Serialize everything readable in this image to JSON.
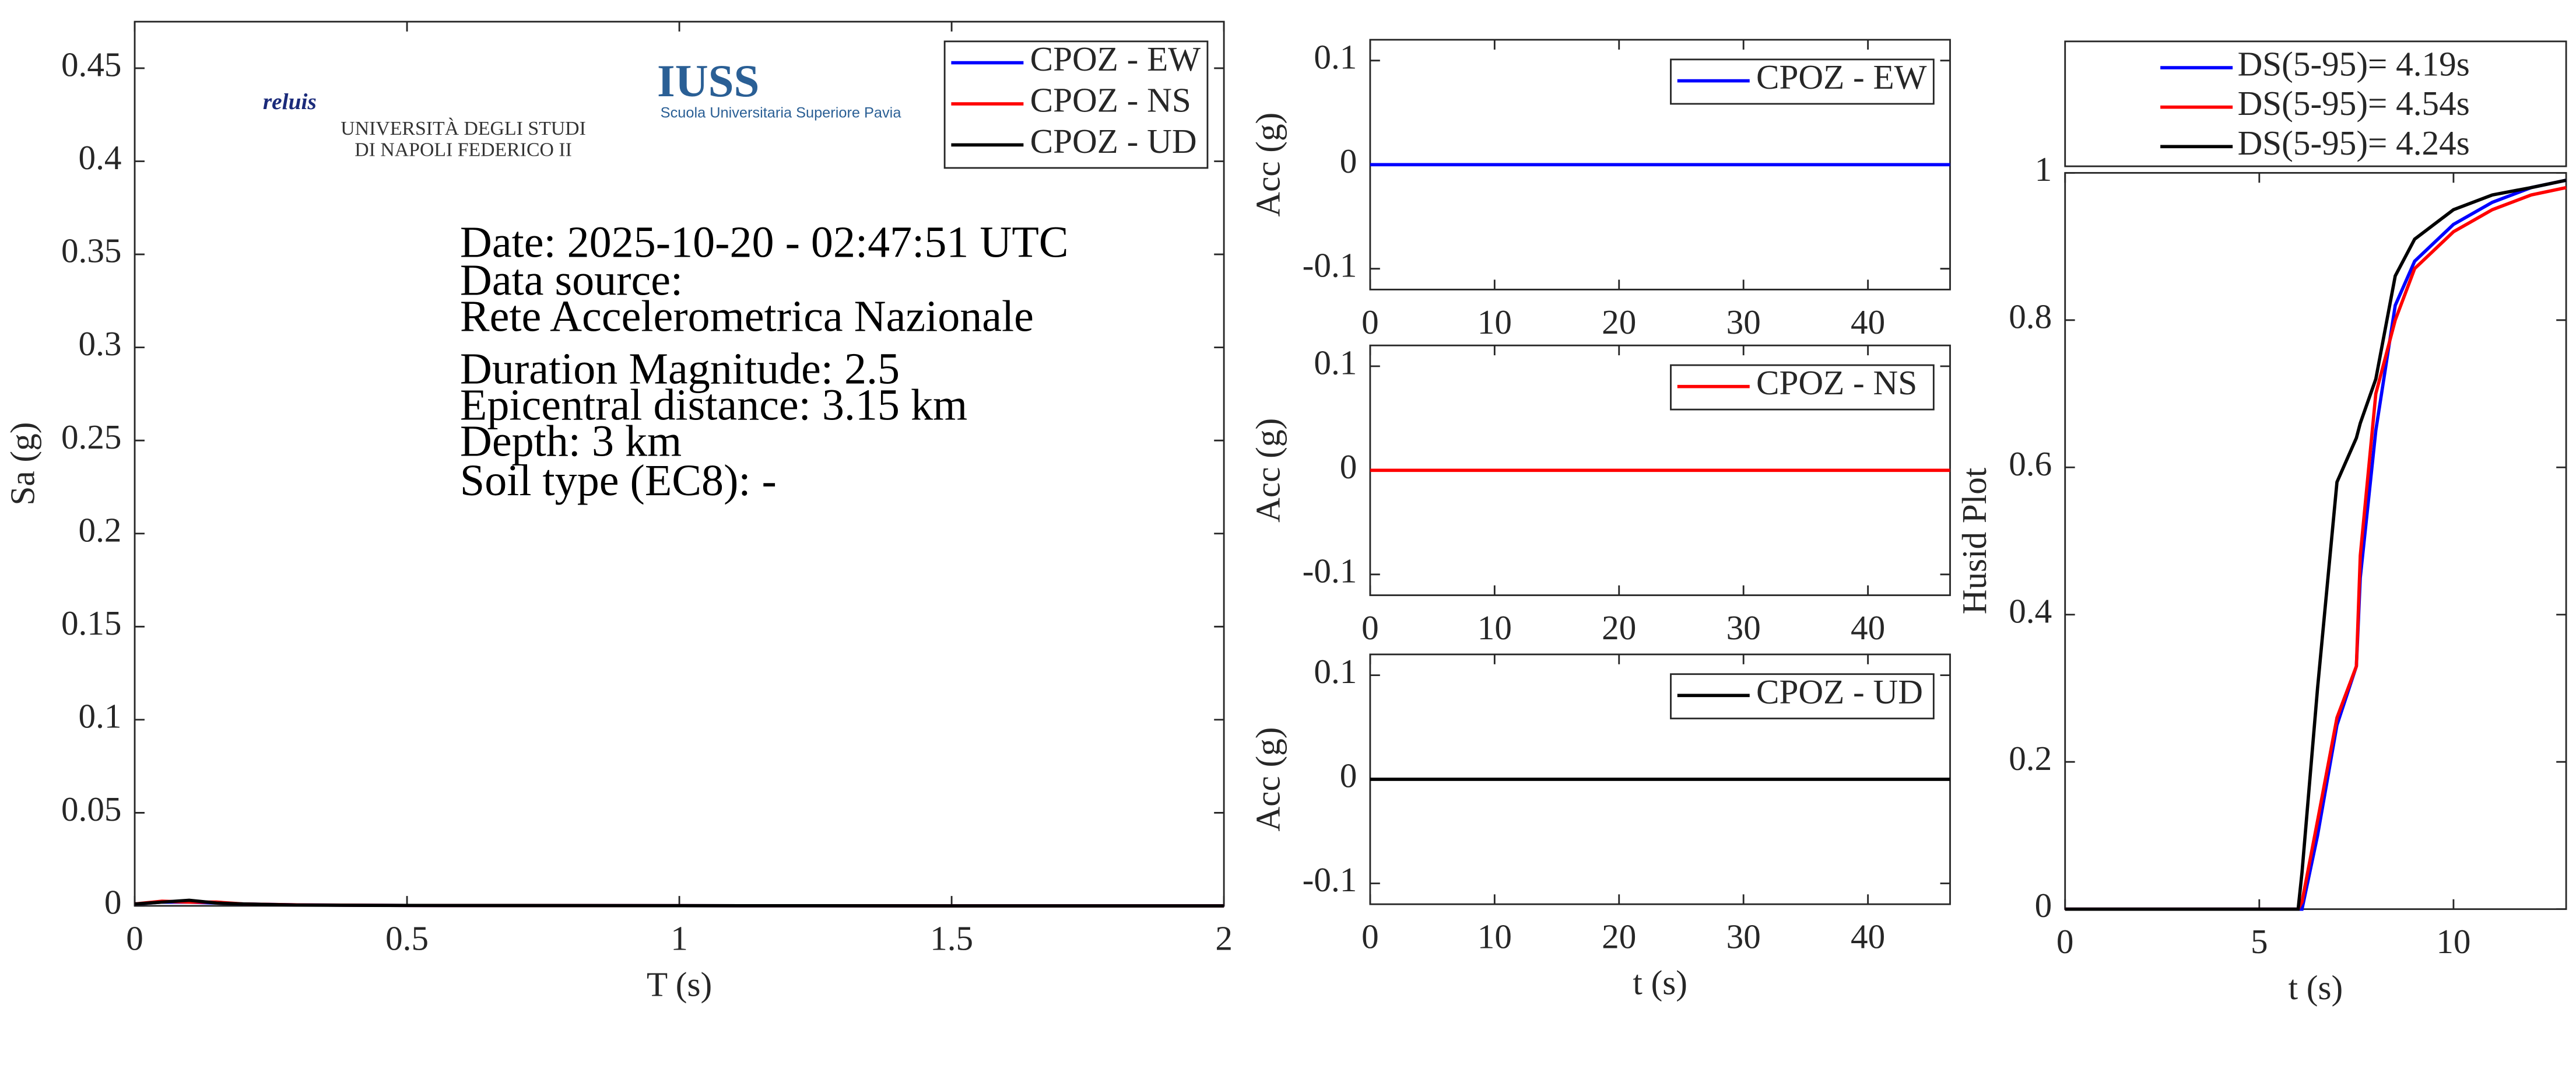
{
  "chart_data": [
    {
      "type": "line",
      "xlabel": "T (s)",
      "ylabel": "Sa (g)",
      "x": [
        0,
        0.05,
        0.1,
        0.15,
        0.2,
        0.3,
        0.5,
        1,
        1.5,
        2
      ],
      "series": [
        {
          "name": "CPOZ - EW",
          "color": "#0000ff",
          "values": [
            0.001,
            0.002,
            0.002,
            0.0015,
            0.001,
            0.0005,
            0.0002,
            0.0001,
            0,
            0
          ]
        },
        {
          "name": "CPOZ - NS",
          "color": "#ff0000",
          "values": [
            0.001,
            0.0025,
            0.002,
            0.002,
            0.001,
            0.0005,
            0.0002,
            0.0001,
            0,
            0
          ]
        },
        {
          "name": "CPOZ - UD",
          "color": "#000000",
          "values": [
            0.001,
            0.002,
            0.003,
            0.0015,
            0.001,
            0.0004,
            0.0002,
            0.0001,
            0,
            0
          ]
        }
      ],
      "xlim": [
        0,
        2
      ],
      "xticks": [
        0,
        0.5,
        1,
        1.5,
        2
      ],
      "ylim": [
        0,
        0.475
      ],
      "yticks": [
        0,
        0.05,
        0.1,
        0.15,
        0.2,
        0.25,
        0.3,
        0.35,
        0.4,
        0.45
      ],
      "legend": "upper right",
      "annotations": [
        "Date: 2025-10-20 - 02:47:51 UTC",
        "Data source:",
        "Rete Accelerometrica Nazionale",
        "Duration Magnitude: 2.5",
        "Epicentral distance: 3.15 km",
        "Depth: 3 km",
        "Soil type (EC8): -"
      ],
      "logos": [
        "reluis",
        "UNIVERSITÀ DEGLI STUDI",
        "DI NAPOLI FEDERICO II",
        "IUSS",
        "Scuola Universitaria Superiore Pavia"
      ]
    },
    {
      "type": "line",
      "ylabel": "Acc (g)",
      "x": [
        0,
        10,
        20,
        30,
        40,
        46.6
      ],
      "series": [
        {
          "name": "CPOZ - EW",
          "color": "#0000ff",
          "values": [
            0,
            0,
            0,
            0,
            0,
            0
          ]
        }
      ],
      "xlim": [
        0,
        46.6
      ],
      "xticks": [
        0,
        10,
        20,
        30,
        40
      ],
      "ylim": [
        -0.12,
        0.12
      ],
      "yticks": [
        -0.1,
        0,
        0.1
      ],
      "legend": "upper right"
    },
    {
      "type": "line",
      "ylabel": "Acc (g)",
      "x": [
        0,
        10,
        20,
        30,
        40,
        46.6
      ],
      "series": [
        {
          "name": "CPOZ - NS",
          "color": "#ff0000",
          "values": [
            0,
            0,
            0,
            0,
            0,
            0
          ]
        }
      ],
      "xlim": [
        0,
        46.6
      ],
      "xticks": [
        0,
        10,
        20,
        30,
        40
      ],
      "ylim": [
        -0.12,
        0.12
      ],
      "yticks": [
        -0.1,
        0,
        0.1
      ],
      "legend": "upper right"
    },
    {
      "type": "line",
      "ylabel": "Acc (g)",
      "xlabel": "t (s)",
      "x": [
        0,
        10,
        20,
        30,
        40,
        46.6
      ],
      "series": [
        {
          "name": "CPOZ - UD",
          "color": "#000000",
          "values": [
            0,
            0,
            0,
            0,
            0,
            0
          ]
        }
      ],
      "xlim": [
        0,
        46.6
      ],
      "xticks": [
        0,
        10,
        20,
        30,
        40
      ],
      "ylim": [
        -0.12,
        0.12
      ],
      "yticks": [
        -0.1,
        0,
        0.1
      ],
      "legend": "upper right"
    },
    {
      "type": "line",
      "ylabel": "Husid Plot",
      "xlabel": "t (s)",
      "x": [
        0,
        6,
        6.1,
        6.5,
        7,
        7.5,
        7.6,
        8,
        8.5,
        9,
        10,
        11,
        12,
        12.9
      ],
      "series": [
        {
          "name": "DS(5-95)= 4.19s",
          "color": "#0000ff",
          "values": [
            0,
            0,
            0,
            0.1,
            0.25,
            0.33,
            0.45,
            0.65,
            0.82,
            0.88,
            0.93,
            0.96,
            0.98,
            0.99
          ]
        },
        {
          "name": "DS(5-95)= 4.54s",
          "color": "#ff0000",
          "values": [
            0,
            0,
            0.01,
            0.12,
            0.26,
            0.33,
            0.48,
            0.7,
            0.8,
            0.87,
            0.92,
            0.95,
            0.97,
            0.98
          ]
        },
        {
          "name": "DS(5-95)= 4.24s",
          "color": "#000000",
          "values": [
            0,
            0,
            0.05,
            0.3,
            0.58,
            0.64,
            0.66,
            0.72,
            0.86,
            0.91,
            0.95,
            0.97,
            0.98,
            0.99
          ]
        }
      ],
      "xlim": [
        0,
        12.9
      ],
      "xticks": [
        0,
        5,
        10
      ],
      "ylim": [
        0,
        1
      ],
      "yticks": [
        0,
        0.2,
        0.4,
        0.6,
        0.8,
        1
      ],
      "legend": "above"
    }
  ]
}
